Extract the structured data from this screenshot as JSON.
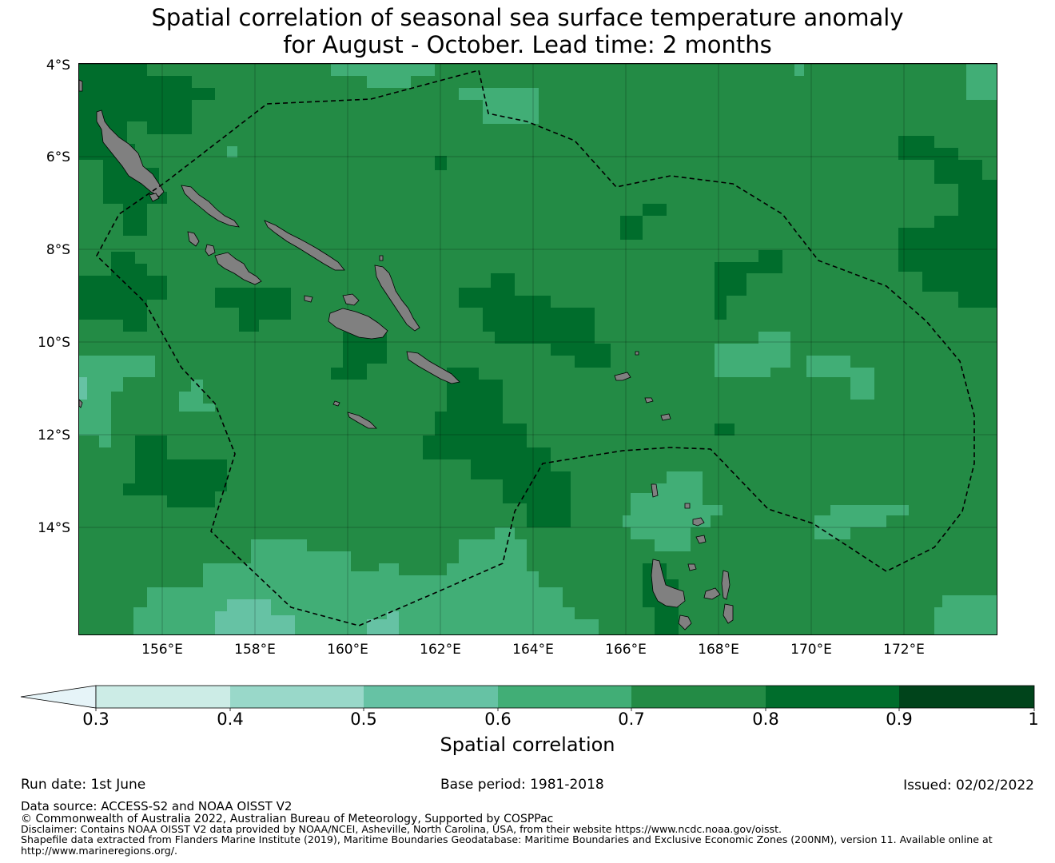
{
  "title_line1": "Spatial correlation of seasonal sea surface temperature anomaly",
  "title_line2": "for August - October. Lead time: 2 months",
  "lat_labels": [
    "4°S",
    "6°S",
    "8°S",
    "10°S",
    "12°S",
    "14°S"
  ],
  "lon_labels": [
    "156°E",
    "158°E",
    "160°E",
    "162°E",
    "164°E",
    "166°E",
    "168°E",
    "170°E",
    "172°E"
  ],
  "map_extent": {
    "lon_min": 154.2,
    "lon_max": 174.0,
    "lat_min": -16.3,
    "lat_max": -4.0
  },
  "colorbar": {
    "label": "Spatial correlation",
    "ticks": [
      "0.3",
      "0.4",
      "0.5",
      "0.6",
      "0.7",
      "0.8",
      "0.9",
      "1"
    ],
    "colors": [
      "#e6f4f8",
      "#ccece6",
      "#99d8c9",
      "#66c2a4",
      "#41ae76",
      "#238b45",
      "#006d2c",
      "#00441b"
    ],
    "extend": "min"
  },
  "land_color": "#808080",
  "eez_line_style": "dashed",
  "footer": {
    "run_date": "Run date: 1st June",
    "base_period": "Base period: 1981-2018",
    "issued": "Issued: 02/02/2022",
    "data_source": "Data source: ACCESS-S2 and NOAA OISST V2",
    "copyright": "© Commonwealth of Australia 2022, Australian Bureau of Meteorology, Supported by COSPPac",
    "disclaimer": "Disclaimer: Contains NOAA OISST V2 data provided by NOAA/NCEI, Asheville, North Carolina, USA, from their website https://www.ncdc.noaa.gov/oisst.",
    "shapefile1": "Shapefile data extracted from Flanders Marine Institute (2019), Maritime Boundaries Geodatabase: Maritime Boundaries and Exclusive Economic Zones (200NM), version 11. Available online at",
    "shapefile2": "http://www.marineregions.org/."
  }
}
